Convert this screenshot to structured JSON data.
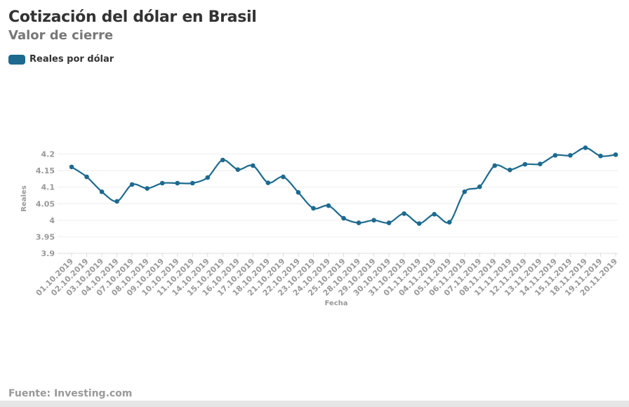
{
  "chart_data": {
    "type": "line",
    "title": "Cotización del dólar en Brasil",
    "subtitle": "Valor de cierre",
    "xlabel": "Fecha",
    "ylabel": "Reales",
    "ylim": [
      3.9,
      4.2
    ],
    "yticks": [
      "3.9",
      "3.95",
      "4",
      "4.05",
      "4.1",
      "4.15",
      "4.2"
    ],
    "grid": true,
    "legend_position": "top-left",
    "categories": [
      "01.10.2019",
      "02.10.2019",
      "03.10.2019",
      "04.10.2019",
      "07.10.2019",
      "08.10.2019",
      "09.10.2019",
      "10.10.2019",
      "11.10.2019",
      "14.10.2019",
      "15.10.2019",
      "16.10.2019",
      "17.10.2019",
      "18.10.2019",
      "21.10.2019",
      "22.10.2019",
      "23.10.2019",
      "24.10.2019",
      "25.10.2019",
      "28.10.2019",
      "29.10.2019",
      "30.10.2019",
      "31.10.2019",
      "01.11.2019",
      "04.11.2019",
      "05.11.2019",
      "06.11.2019",
      "07.11.2019",
      "08.11.2019",
      "11.11.2019",
      "12.11.2019",
      "13.11.2019",
      "14.11.2019",
      "15.11.2019",
      "18.11.2019",
      "19.11.2019",
      "20.11.2019"
    ],
    "series": [
      {
        "name": "Reales por dólar",
        "color": "#1d6a8f",
        "values": [
          4.161,
          4.131,
          4.086,
          4.057,
          4.108,
          4.096,
          4.112,
          4.112,
          4.112,
          4.129,
          4.182,
          4.153,
          4.165,
          4.113,
          4.131,
          4.084,
          4.036,
          4.044,
          4.006,
          3.992,
          4.0,
          3.992,
          4.02,
          3.99,
          4.018,
          3.994,
          4.086,
          4.101,
          4.165,
          4.152,
          4.169,
          4.17,
          4.196,
          4.196,
          4.219,
          4.194,
          4.198
        ]
      }
    ]
  },
  "source": "Fuente: Investing.com"
}
